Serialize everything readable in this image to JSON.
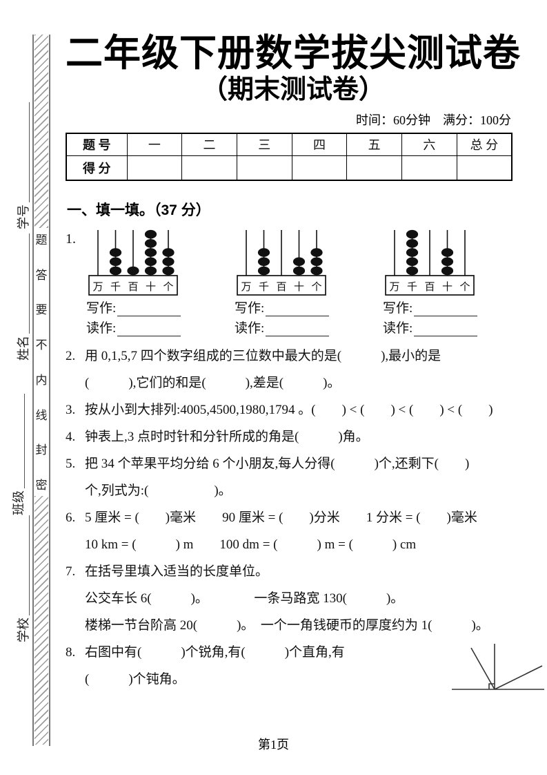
{
  "page": {
    "title": "二年级下册数学拔尖测试卷",
    "subtitle": "（期末测试卷）",
    "meta": "时间：60分钟　满分：100分",
    "footer": "第1页"
  },
  "seal": {
    "fields": [
      "学号",
      "姓名",
      "班级",
      "学校"
    ],
    "warning_chars": [
      "题",
      "答",
      "要",
      "不",
      "内",
      "线",
      "封",
      "密"
    ]
  },
  "score_table": {
    "row1_label": "题 号",
    "columns": [
      "一",
      "二",
      "三",
      "四",
      "五",
      "六",
      "总 分"
    ],
    "row2_label": "得 分"
  },
  "section_one": {
    "heading": "一、填一填。（37 分）",
    "q1": {
      "num": "1.",
      "place_labels": [
        "万",
        "千",
        "百",
        "十",
        "个"
      ],
      "abacuses": [
        {
          "beads": [
            0,
            3,
            1,
            5,
            3
          ]
        },
        {
          "beads": [
            0,
            3,
            0,
            2,
            3
          ]
        },
        {
          "beads": [
            0,
            5,
            0,
            3,
            0
          ]
        }
      ],
      "write_label": "写作:",
      "read_label": "读作:"
    },
    "questions": [
      {
        "num": "2.",
        "lines": [
          "用 0,1,5,7 四个数字组成的三位数中最大的是(　　　),最小的是",
          "(　　　),它们的和是(　　　),差是(　　　)。"
        ]
      },
      {
        "num": "3.",
        "lines": [
          "按从小到大排列:4005,4500,1980,1794 。(　　) < (　　) < (　　) < (　　)"
        ]
      },
      {
        "num": "4.",
        "lines": [
          "钟表上,3 点时时针和分针所成的角是(　　　)角。"
        ]
      },
      {
        "num": "5.",
        "lines": [
          "把 34 个苹果平均分给 6 个小朋友,每人分得(　　　)个,还剩下(　　)",
          "个,列式为:(　　　　　)。"
        ]
      },
      {
        "num": "6.",
        "lines": [
          "5 厘米 = (　　)毫米　　90 厘米 = (　　)分米　　1 分米 = (　　)毫米",
          "10 km = (　　　) m　　100 dm = (　　　) m = (　　　) cm"
        ]
      },
      {
        "num": "7.",
        "lines": [
          "在括号里填入适当的长度单位。",
          "公交车长 6(　　　)。　　　　一条马路宽 130(　　　)。",
          "楼梯一节台阶高 20(　　　)。　一个一角钱硬币的厚度约为 1(　　　)。"
        ]
      },
      {
        "num": "8.",
        "lines": [
          "右图中有(　　　)个锐角,有(　　　)个直角,有",
          "(　　　)个钝角。"
        ]
      }
    ]
  }
}
